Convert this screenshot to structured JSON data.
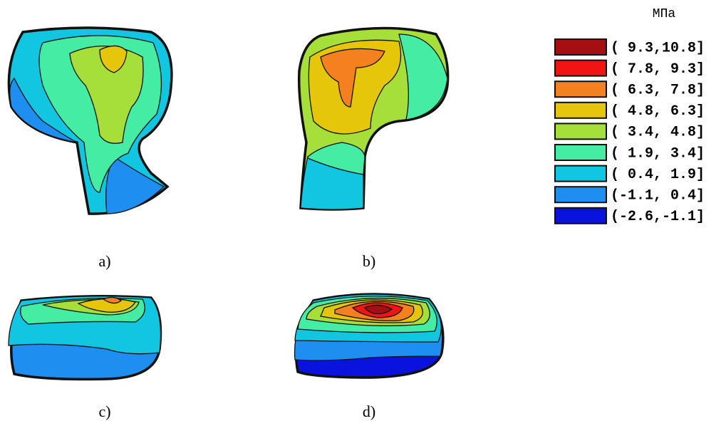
{
  "unit": "МПа",
  "legend": [
    {
      "label": "( 9.3,10.8]",
      "color": "#a50f12"
    },
    {
      "label": "( 7.8, 9.3]",
      "color": "#f01414"
    },
    {
      "label": "( 6.3, 7.8]",
      "color": "#f58020"
    },
    {
      "label": "( 4.8, 6.3]",
      "color": "#e6c60a"
    },
    {
      "label": "( 3.4, 4.8]",
      "color": "#a6de3a"
    },
    {
      "label": "( 1.9, 3.4]",
      "color": "#45eca4"
    },
    {
      "label": "( 0.4, 1.9]",
      "color": "#12c6e2"
    },
    {
      "label": "(-1.1, 0.4]",
      "color": "#1e8ef0"
    },
    {
      "label": "(-2.6,-1.1]",
      "color": "#0a12de"
    }
  ],
  "panels": [
    "a)",
    "b)",
    "c)",
    "d)"
  ]
}
